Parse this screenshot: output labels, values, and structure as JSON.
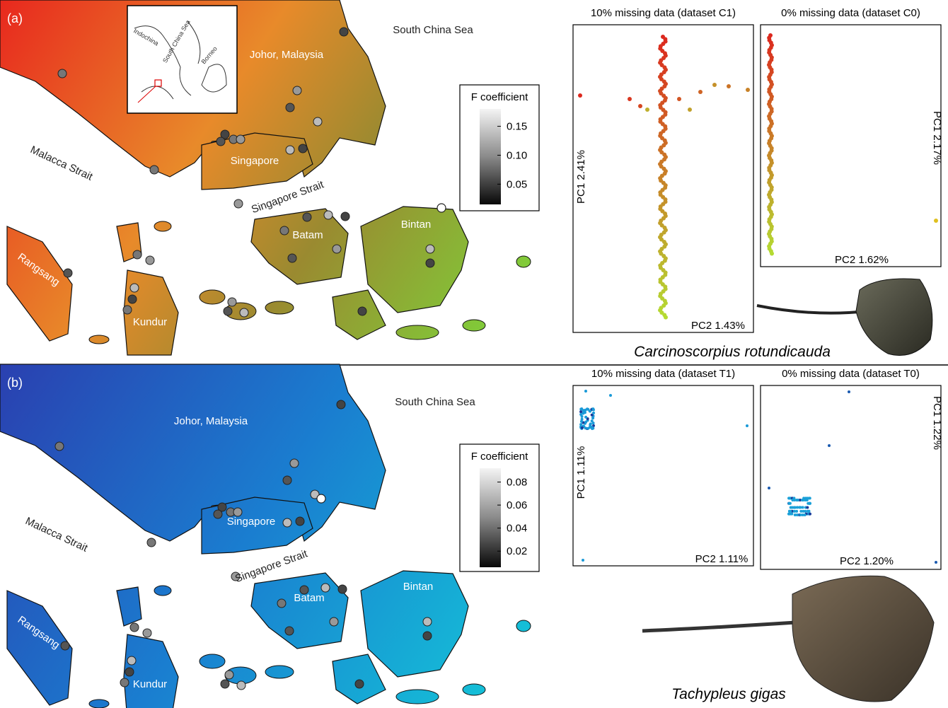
{
  "panels": [
    {
      "label": "(a)",
      "map_labels": [
        "South China Sea",
        "Johor, Malaysia",
        "Malacca Strait",
        "Singapore",
        "Singapore Strait",
        "Batam",
        "Bintan",
        "Rangsang",
        "Kundur"
      ],
      "inset_labels": [
        "Indochina",
        "South China Sea",
        "Borneo"
      ],
      "legend": {
        "title": "F coefficient",
        "ticks": [
          "0.15",
          "0.10",
          "0.05"
        ]
      },
      "plots": [
        {
          "title": "10% missing data (dataset C1)",
          "ylabel": "PC1 2.41%",
          "xlabel": "PC2 1.43%"
        },
        {
          "title": "0% missing data (dataset C0)",
          "ylabel": "PC1 2.17%",
          "xlabel": "PC2 1.62%"
        }
      ],
      "species": "Carcinoscorpius rotundicauda"
    },
    {
      "label": "(b)",
      "map_labels": [
        "South China Sea",
        "Johor, Malaysia",
        "Malacca Strait",
        "Singapore",
        "Singapore Strait",
        "Batam",
        "Bintan",
        "Rangsang",
        "Kundur"
      ],
      "legend": {
        "title": "F coefficient",
        "ticks": [
          "0.08",
          "0.06",
          "0.04",
          "0.02"
        ]
      },
      "plots": [
        {
          "title": "10% missing data (dataset T1)",
          "ylabel": "PC1 1.11%",
          "xlabel": "PC2 1.11%"
        },
        {
          "title": "0% missing data (dataset T0)",
          "ylabel": "PC1 1.22%",
          "xlabel": "PC2 1.20%"
        }
      ],
      "species": "Tachypleus gigas"
    }
  ]
}
